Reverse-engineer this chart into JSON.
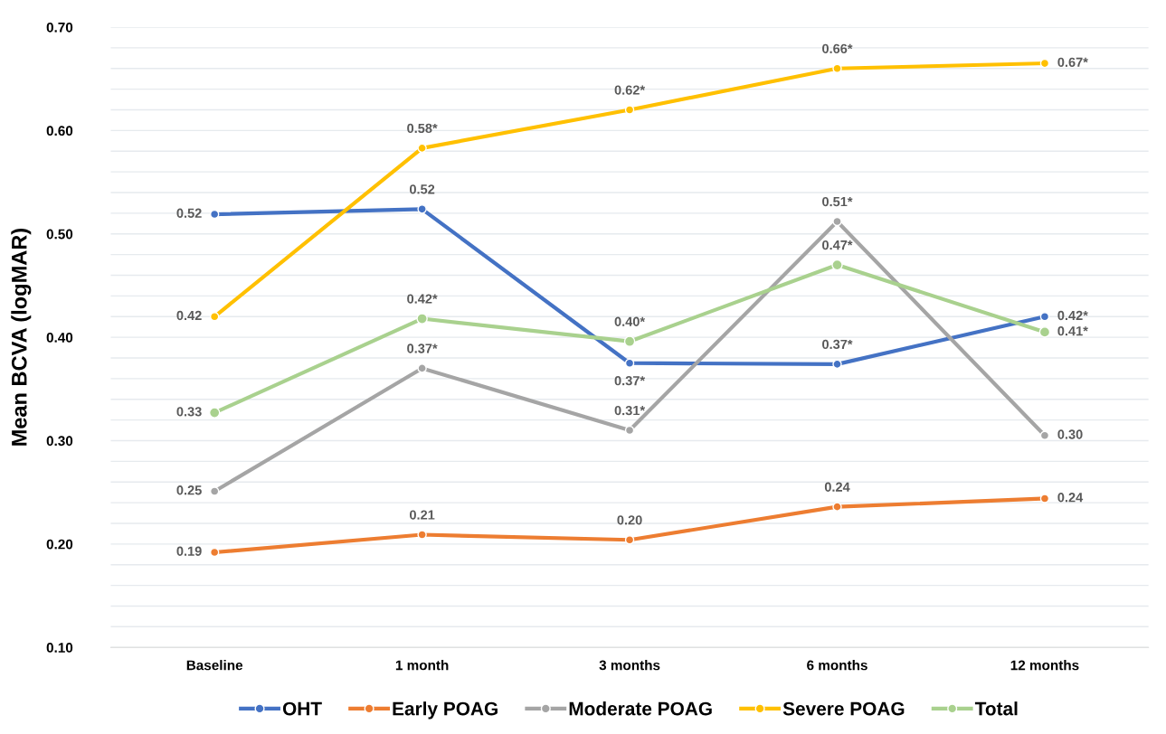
{
  "chart_data": {
    "type": "line",
    "ylabel": "Mean BCVA (logMAR)",
    "categories": [
      "Baseline",
      "1 month",
      "3 months",
      "6 months",
      "12 months"
    ],
    "series": [
      {
        "name": "OHT",
        "color": "#4472c4",
        "values": [
          0.519,
          0.524,
          0.375,
          0.374,
          0.42
        ],
        "value_labels": [
          "0.52",
          "0.52",
          "0.37*",
          "0.37*",
          "0.42*"
        ]
      },
      {
        "name": "Early POAG",
        "color": "#ed7d31",
        "values": [
          0.192,
          0.209,
          0.204,
          0.236,
          0.244
        ],
        "value_labels": [
          "0.19",
          "0.21",
          "0.20",
          "0.24",
          "0.24"
        ]
      },
      {
        "name": "Moderate POAG",
        "color": "#a5a5a5",
        "values": [
          0.251,
          0.37,
          0.31,
          0.512,
          0.305
        ],
        "value_labels": [
          "0.25",
          "0.37*",
          "0.31*",
          "0.51*",
          "0.30"
        ]
      },
      {
        "name": "Severe POAG",
        "color": "#ffc000",
        "values": [
          0.42,
          0.583,
          0.62,
          0.66,
          0.665
        ],
        "value_labels": [
          "0.42",
          "0.58*",
          "0.62*",
          "0.66*",
          "0.67*"
        ]
      },
      {
        "name": "Total",
        "color": "#a9d18e",
        "values": [
          0.327,
          0.418,
          0.396,
          0.47,
          0.405
        ],
        "value_labels": [
          "0.33",
          "0.42*",
          "0.40*",
          "0.47*",
          "0.41*"
        ]
      }
    ],
    "ylim": [
      0.1,
      0.7
    ],
    "yticks": [
      {
        "value": 0.1,
        "label": "0.10"
      },
      {
        "value": 0.12,
        "label": null
      },
      {
        "value": 0.14,
        "label": null
      },
      {
        "value": 0.16,
        "label": null
      },
      {
        "value": 0.18,
        "label": null
      },
      {
        "value": 0.2,
        "label": "0.20"
      },
      {
        "value": 0.22,
        "label": null
      },
      {
        "value": 0.24,
        "label": null
      },
      {
        "value": 0.26,
        "label": null
      },
      {
        "value": 0.28,
        "label": null
      },
      {
        "value": 0.3,
        "label": "0.30"
      },
      {
        "value": 0.32,
        "label": null
      },
      {
        "value": 0.34,
        "label": null
      },
      {
        "value": 0.36,
        "label": null
      },
      {
        "value": 0.38,
        "label": null
      },
      {
        "value": 0.4,
        "label": "0.40"
      },
      {
        "value": 0.42,
        "label": null
      },
      {
        "value": 0.44,
        "label": null
      },
      {
        "value": 0.46,
        "label": null
      },
      {
        "value": 0.48,
        "label": null
      },
      {
        "value": 0.5,
        "label": "0.50"
      },
      {
        "value": 0.52,
        "label": null
      },
      {
        "value": 0.54,
        "label": null
      },
      {
        "value": 0.56,
        "label": null
      },
      {
        "value": 0.58,
        "label": null
      },
      {
        "value": 0.6,
        "label": "0.60"
      },
      {
        "value": 0.62,
        "label": null
      },
      {
        "value": 0.64,
        "label": null
      },
      {
        "value": 0.66,
        "label": null
      },
      {
        "value": 0.68,
        "label": null
      },
      {
        "value": 0.7,
        "label": "0.70"
      }
    ],
    "grid": "y",
    "legend": "bottom",
    "marker": "circle",
    "line_style": "solid"
  }
}
